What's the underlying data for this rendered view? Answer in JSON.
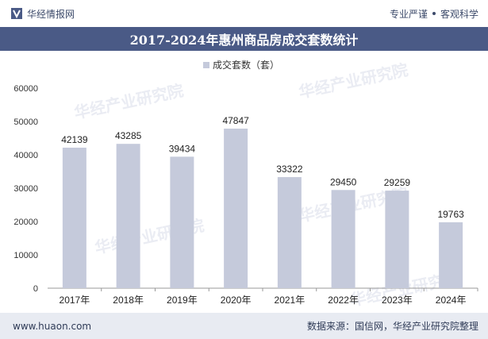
{
  "header": {
    "brand": "华经情报网",
    "slogan_left": "专业严谨",
    "slogan_right": "客观科学"
  },
  "footer": {
    "url": "www.huaon.com",
    "source": "数据来源：国信网，华经产业研究院整理"
  },
  "watermark": {
    "text": "华经产业研究院"
  },
  "colors": {
    "title_bg": "#4a5a86",
    "bar": "#c5cadb",
    "footer_bg": "#e8ebf2",
    "text": "#333333"
  },
  "chart_data": {
    "type": "bar",
    "title": "2017-2024年惠州商品房成交套数统计",
    "categories": [
      "2017年",
      "2018年",
      "2019年",
      "2020年",
      "2021年",
      "2022年",
      "2023年",
      "2024年"
    ],
    "series": [
      {
        "name": "成交套数（套）",
        "values": [
          42139,
          43285,
          39434,
          47847,
          33322,
          29450,
          29259,
          19763
        ]
      }
    ],
    "ylim": [
      0,
      60000
    ],
    "yticks": [
      0,
      10000,
      20000,
      30000,
      40000,
      50000,
      60000
    ],
    "legend": "top-center",
    "grid": false
  }
}
